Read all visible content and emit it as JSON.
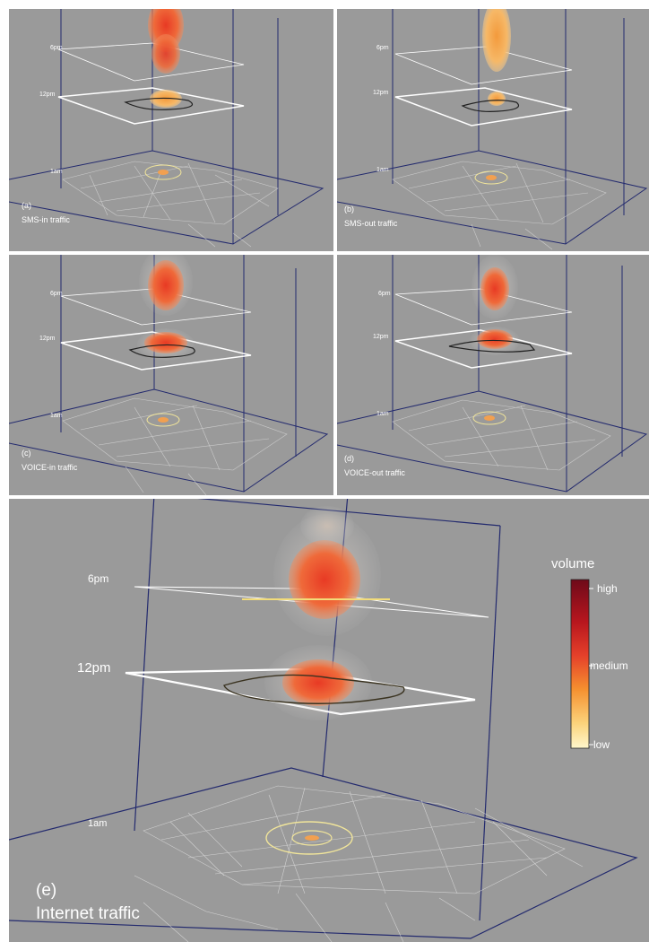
{
  "panels": [
    {
      "id": "a",
      "label": "(a)",
      "title": "SMS-in traffic",
      "ticks": [
        "6pm",
        "12pm",
        "1am"
      ]
    },
    {
      "id": "b",
      "label": "(b)",
      "title": "SMS-out traffic",
      "ticks": [
        "6pm",
        "12pm",
        "1am"
      ]
    },
    {
      "id": "c",
      "label": "(c)",
      "title": "VOICE-in traffic",
      "ticks": [
        "6pm",
        "12pm",
        "1am"
      ]
    },
    {
      "id": "d",
      "label": "(d)",
      "title": "VOICE-out traffic",
      "ticks": [
        "6pm",
        "12pm",
        "1am"
      ]
    },
    {
      "id": "e",
      "label": "(e)",
      "title": "Internet traffic",
      "ticks": [
        "6pm",
        "12pm",
        "1am"
      ]
    }
  ],
  "legend": {
    "title": "volume",
    "high": "high",
    "medium": "medium",
    "low": "low",
    "colors": [
      "#6e0a1a",
      "#d42a2a",
      "#f07a30",
      "#fbd27a",
      "#fff7cc"
    ]
  }
}
